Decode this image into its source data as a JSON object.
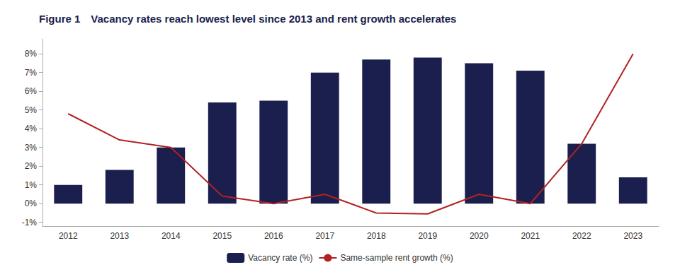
{
  "chart_data": {
    "type": "bar_line",
    "title": "Figure 1",
    "subtitle": "Vacancy rates reach lowest level since 2013 and rent growth accelerates",
    "categories": [
      "2012",
      "2013",
      "2014",
      "2015",
      "2016",
      "2017",
      "2018",
      "2019",
      "2020",
      "2021",
      "2022",
      "2023"
    ],
    "series": [
      {
        "name": "Vacancy rate (%)",
        "type": "bar",
        "color": "#1a1f4e",
        "values": [
          1.0,
          1.8,
          3.0,
          5.4,
          5.5,
          7.0,
          7.7,
          7.8,
          7.5,
          7.1,
          3.2,
          1.4
        ]
      },
      {
        "name": "Same-sample rent growth (%)",
        "type": "line",
        "color": "#b22222",
        "values": [
          4.8,
          3.4,
          3.0,
          0.4,
          0.0,
          0.5,
          -0.5,
          -0.55,
          0.5,
          0.0,
          3.2,
          8.0
        ]
      }
    ],
    "ylim": [
      -1.2,
      8.8
    ],
    "yticks": [
      {
        "value": -1,
        "label": "-1%"
      },
      {
        "value": 0,
        "label": "0%"
      },
      {
        "value": 1,
        "label": "1%"
      },
      {
        "value": 2,
        "label": "2%"
      },
      {
        "value": 3,
        "label": "3%"
      },
      {
        "value": 4,
        "label": "4%"
      },
      {
        "value": 5,
        "label": "5%"
      },
      {
        "value": 6,
        "label": "6%"
      },
      {
        "value": 7,
        "label": "7%"
      },
      {
        "value": 8,
        "label": "8%"
      }
    ],
    "grid": false,
    "legend": "bottom"
  }
}
